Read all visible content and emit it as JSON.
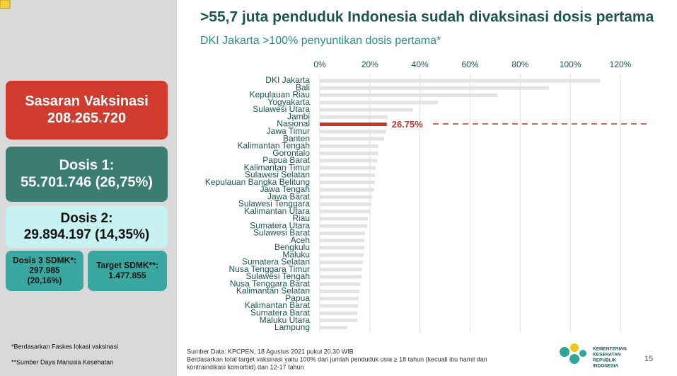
{
  "slide": {
    "cards": [
      {
        "lines": [
          "Sasaran Vaksinasi",
          "208.265.720"
        ]
      },
      {
        "lines": [
          "Dosis 1:",
          "55.701.746 (26,75%)"
        ]
      },
      {
        "lines": [
          "Dosis 2:",
          "29.894.197 (14,35%)"
        ]
      },
      {
        "lines": [
          "Dosis 3 SDMK*:",
          "297.985",
          "(20,16%)"
        ]
      },
      {
        "lines": [
          "Target SDMK**:",
          "1.477.855"
        ]
      }
    ],
    "footnotes": [
      "*Berdasarkan Faskes lokasi vaksinasi",
      "**Sumber Daya Manusia Kesehatan"
    ],
    "source": [
      "Sumber Data: KPCPEN, 18 Agustus 2021 pukul 20.30 WIB",
      "Berdasarkan total target vaksinasi yaitu 100% dari jumlah penduduk usia ≥ 18 tahun (kecuali ibu hamil dan",
      "kontraindikasi komorbid) dan 12-17 tahun"
    ],
    "logo": [
      "KEMENTERIAN",
      "KESEHATAN",
      "REPUBLIK",
      "INDONESIA"
    ],
    "page_number": "15"
  },
  "chart_data": {
    "type": "bar",
    "orientation": "horizontal",
    "title": ">55,7 juta penduduk Indonesia sudah divaksinasi dosis pertama",
    "subtitle": "DKI Jakarta >100% penyuntikan dosis pertama*",
    "categories": [
      "DKI Jakarta",
      "Bali",
      "Kepulauan Riau",
      "Yogyakarta",
      "Sulawesi Utara",
      "Jambi",
      "Nasional",
      "Jawa Timur",
      "Banten",
      "Kalimantan Tengah",
      "Gorontalo",
      "Papua Barat",
      "Kalimantan Timur",
      "Sulawesi Selatan",
      "Kepulauan Bangka Belitung",
      "Jawa Tengah",
      "Jawa Barat",
      "Sulawesi Tenggara",
      "Kalimantan Utara",
      "Riau",
      "Sumatera Utara",
      "Sulawesi Barat",
      "Aceh",
      "Bengkulu",
      "Maluku",
      "Sumatera Selatan",
      "Nusa Tenggara Timur",
      "Sulawesi Tengah",
      "Nusa Tenggara Barat",
      "Kalimantan Selatan",
      "Papua",
      "Kalimantan Barat",
      "Sumatera Barat",
      "Maluku Utara",
      "Lampung"
    ],
    "values": [
      112,
      91.5,
      70.9,
      47.1,
      37.3,
      27.1,
      26.75,
      26.5,
      25.7,
      23.4,
      23.2,
      22.9,
      22.3,
      22,
      22,
      21.7,
      20.9,
      20.6,
      20.3,
      19.2,
      18.9,
      18.1,
      17.8,
      17.8,
      17.5,
      17.2,
      16.9,
      16.7,
      16.1,
      15.8,
      15.5,
      15.2,
      15,
      15,
      11
    ],
    "value_labels": [
      null,
      null,
      null,
      null,
      null,
      null,
      "26.75%",
      null,
      null,
      null,
      null,
      null,
      null,
      null,
      null,
      null,
      null,
      null,
      null,
      null,
      null,
      null,
      null,
      null,
      null,
      null,
      null,
      null,
      null,
      null,
      null,
      null,
      null,
      null,
      null
    ],
    "colors": [
      "#e3e3e3",
      "#e3e3e3",
      "#e3e3e3",
      "#e3e3e3",
      "#e3e3e3",
      "#e3e3e3",
      "#c0392b",
      "#e3e3e3",
      "#e3e3e3",
      "#e3e3e3",
      "#e3e3e3",
      "#e3e3e3",
      "#e3e3e3",
      "#e3e3e3",
      "#e3e3e3",
      "#e3e3e3",
      "#e3e3e3",
      "#e3e3e3",
      "#e3e3e3",
      "#e3e3e3",
      "#e3e3e3",
      "#e3e3e3",
      "#e3e3e3",
      "#e3e3e3",
      "#e3e3e3",
      "#e3e3e3",
      "#e3e3e3",
      "#e3e3e3",
      "#e3e3e3",
      "#e3e3e3",
      "#e3e3e3",
      "#e3e3e3",
      "#e3e3e3",
      "#e3e3e3",
      "#e3e3e3"
    ],
    "xlim": [
      0,
      120
    ],
    "xticks": [
      {
        "value": 0,
        "label": "0%"
      },
      {
        "value": 20,
        "label": "20%"
      },
      {
        "value": 40,
        "label": "40%"
      },
      {
        "value": 60,
        "label": "60%"
      },
      {
        "value": 80,
        "label": "80%"
      },
      {
        "value": 100,
        "label": "100%"
      },
      {
        "value": 120,
        "label": "120%"
      }
    ],
    "grid": true
  }
}
